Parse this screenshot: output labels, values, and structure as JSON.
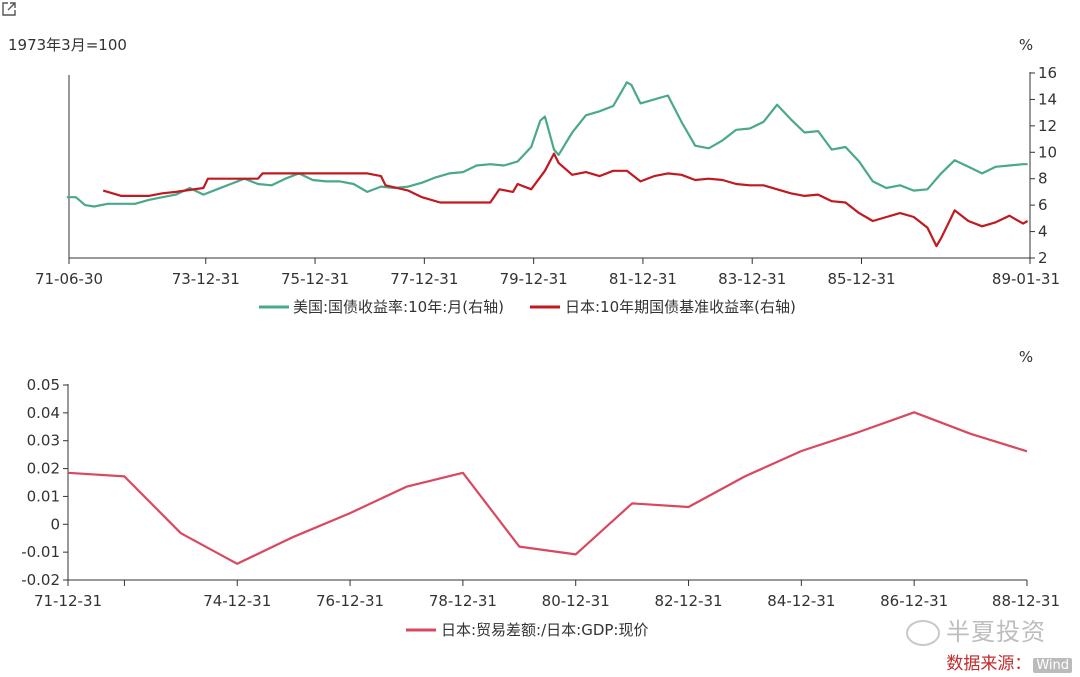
{
  "chart_data": [
    {
      "type": "line",
      "note_left": "1973年3月=100",
      "unit_right": "%",
      "x_tick_labels": [
        "71-06-30",
        "73-12-31",
        "75-12-31",
        "77-12-31",
        "79-12-31",
        "81-12-31",
        "83-12-31",
        "85-12-31",
        "89-01-31"
      ],
      "x_tick_dates": [
        "1971-06-30",
        "1973-12-31",
        "1975-12-31",
        "1977-12-31",
        "1979-12-31",
        "1981-12-31",
        "1983-12-31",
        "1985-12-31",
        "1989-01-31"
      ],
      "x_range": [
        "1971-06-30",
        "1989-01-31"
      ],
      "y_right_ticks": [
        2,
        4,
        6,
        8,
        10,
        12,
        14,
        16
      ],
      "y_right_range": [
        2,
        16
      ],
      "series": [
        {
          "name": "美国:国债收益率:10年:月(右轴)",
          "color": "#4aa88b",
          "points": [
            [
              "1971-06",
              6.6
            ],
            [
              "1971-08",
              6.6
            ],
            [
              "1971-10",
              6.0
            ],
            [
              "1971-12",
              5.9
            ],
            [
              "1972-03",
              6.1
            ],
            [
              "1972-06",
              6.1
            ],
            [
              "1972-09",
              6.1
            ],
            [
              "1972-12",
              6.4
            ],
            [
              "1973-03",
              6.6
            ],
            [
              "1973-06",
              6.8
            ],
            [
              "1973-09",
              7.3
            ],
            [
              "1973-12",
              6.8
            ],
            [
              "1974-03",
              7.2
            ],
            [
              "1974-06",
              7.6
            ],
            [
              "1974-09",
              8.0
            ],
            [
              "1974-12",
              7.6
            ],
            [
              "1975-03",
              7.5
            ],
            [
              "1975-06",
              8.0
            ],
            [
              "1975-09",
              8.4
            ],
            [
              "1975-12",
              7.9
            ],
            [
              "1976-03",
              7.8
            ],
            [
              "1976-06",
              7.8
            ],
            [
              "1976-09",
              7.6
            ],
            [
              "1976-12",
              7.0
            ],
            [
              "1977-03",
              7.4
            ],
            [
              "1977-06",
              7.3
            ],
            [
              "1977-09",
              7.4
            ],
            [
              "1977-12",
              7.7
            ],
            [
              "1978-03",
              8.1
            ],
            [
              "1978-06",
              8.4
            ],
            [
              "1978-09",
              8.5
            ],
            [
              "1978-12",
              9.0
            ],
            [
              "1979-03",
              9.1
            ],
            [
              "1979-06",
              9.0
            ],
            [
              "1979-09",
              9.3
            ],
            [
              "1979-12",
              10.4
            ],
            [
              "1980-02",
              12.4
            ],
            [
              "1980-03",
              12.7
            ],
            [
              "1980-05",
              10.2
            ],
            [
              "1980-06",
              9.8
            ],
            [
              "1980-09",
              11.5
            ],
            [
              "1980-12",
              12.8
            ],
            [
              "1981-03",
              13.1
            ],
            [
              "1981-06",
              13.5
            ],
            [
              "1981-09",
              15.3
            ],
            [
              "1981-10",
              15.1
            ],
            [
              "1981-12",
              13.7
            ],
            [
              "1982-03",
              14.0
            ],
            [
              "1982-06",
              14.3
            ],
            [
              "1982-09",
              12.3
            ],
            [
              "1982-12",
              10.5
            ],
            [
              "1983-03",
              10.3
            ],
            [
              "1983-06",
              10.9
            ],
            [
              "1983-09",
              11.7
            ],
            [
              "1983-12",
              11.8
            ],
            [
              "1984-03",
              12.3
            ],
            [
              "1984-06",
              13.6
            ],
            [
              "1984-09",
              12.5
            ],
            [
              "1984-12",
              11.5
            ],
            [
              "1985-03",
              11.6
            ],
            [
              "1985-06",
              10.2
            ],
            [
              "1985-09",
              10.4
            ],
            [
              "1985-12",
              9.3
            ],
            [
              "1986-03",
              7.8
            ],
            [
              "1986-06",
              7.3
            ],
            [
              "1986-09",
              7.5
            ],
            [
              "1986-12",
              7.1
            ],
            [
              "1987-03",
              7.2
            ],
            [
              "1987-06",
              8.4
            ],
            [
              "1987-09",
              9.4
            ],
            [
              "1987-12",
              8.9
            ],
            [
              "1988-03",
              8.4
            ],
            [
              "1988-06",
              8.9
            ],
            [
              "1988-09",
              9.0
            ],
            [
              "1988-12",
              9.1
            ],
            [
              "1989-01",
              9.1
            ]
          ]
        },
        {
          "name": "日本:10年期国债基准收益率(右轴)",
          "color": "#c0191f",
          "points": [
            [
              "1972-02",
              7.1
            ],
            [
              "1972-06",
              6.7
            ],
            [
              "1972-12",
              6.7
            ],
            [
              "1973-03",
              6.9
            ],
            [
              "1973-06",
              7.0
            ],
            [
              "1973-12",
              7.3
            ],
            [
              "1974-01",
              8.0
            ],
            [
              "1974-12",
              8.0
            ],
            [
              "1975-01",
              8.4
            ],
            [
              "1976-12",
              8.4
            ],
            [
              "1977-03",
              8.2
            ],
            [
              "1977-04",
              7.5
            ],
            [
              "1977-09",
              7.1
            ],
            [
              "1977-12",
              6.6
            ],
            [
              "1978-04",
              6.2
            ],
            [
              "1979-03",
              6.2
            ],
            [
              "1979-05",
              7.2
            ],
            [
              "1979-08",
              7.0
            ],
            [
              "1979-09",
              7.6
            ],
            [
              "1979-12",
              7.2
            ],
            [
              "1980-03",
              8.6
            ],
            [
              "1980-05",
              9.9
            ],
            [
              "1980-06",
              9.2
            ],
            [
              "1980-09",
              8.3
            ],
            [
              "1980-12",
              8.5
            ],
            [
              "1981-03",
              8.2
            ],
            [
              "1981-06",
              8.6
            ],
            [
              "1981-09",
              8.6
            ],
            [
              "1981-12",
              7.8
            ],
            [
              "1982-03",
              8.2
            ],
            [
              "1982-06",
              8.4
            ],
            [
              "1982-09",
              8.3
            ],
            [
              "1982-12",
              7.9
            ],
            [
              "1983-03",
              8.0
            ],
            [
              "1983-06",
              7.9
            ],
            [
              "1983-09",
              7.6
            ],
            [
              "1983-12",
              7.5
            ],
            [
              "1984-03",
              7.5
            ],
            [
              "1984-06",
              7.2
            ],
            [
              "1984-09",
              6.9
            ],
            [
              "1984-12",
              6.7
            ],
            [
              "1985-03",
              6.8
            ],
            [
              "1985-06",
              6.3
            ],
            [
              "1985-09",
              6.2
            ],
            [
              "1985-12",
              5.4
            ],
            [
              "1986-03",
              4.8
            ],
            [
              "1986-06",
              5.1
            ],
            [
              "1986-09",
              5.4
            ],
            [
              "1986-12",
              5.1
            ],
            [
              "1987-03",
              4.3
            ],
            [
              "1987-05",
              2.9
            ],
            [
              "1987-06",
              3.5
            ],
            [
              "1987-09",
              5.6
            ],
            [
              "1987-12",
              4.8
            ],
            [
              "1988-03",
              4.4
            ],
            [
              "1988-06",
              4.7
            ],
            [
              "1988-09",
              5.2
            ],
            [
              "1988-12",
              4.6
            ],
            [
              "1989-01",
              4.8
            ]
          ]
        }
      ],
      "legend_placement": "bottom"
    },
    {
      "type": "line",
      "unit_right": "%",
      "x_tick_labels": [
        "71-12-31",
        "74-12-31",
        "76-12-31",
        "78-12-31",
        "80-12-31",
        "82-12-31",
        "84-12-31",
        "86-12-31",
        "88-12-31"
      ],
      "x_tick_dates": [
        "1971-12-31",
        "1974-12-31",
        "1976-12-31",
        "1978-12-31",
        "1980-12-31",
        "1982-12-31",
        "1984-12-31",
        "1986-12-31",
        "1988-12-31"
      ],
      "x_range": [
        "1971-12-31",
        "1988-12-31"
      ],
      "y_ticks": [
        -0.02,
        -0.01,
        0,
        0.01,
        0.02,
        0.03,
        0.04,
        0.05
      ],
      "y_tick_labels": [
        "-0.02",
        "-0.01",
        "0",
        "0.01",
        "0.02",
        "0.03",
        "0.04",
        "0.05"
      ],
      "y_range": [
        -0.02,
        0.05
      ],
      "series": [
        {
          "name": "日本:贸易差额:/日本:GDP:现价",
          "color": "#d94860",
          "points": [
            [
              "1971-12-31",
              0.0185
            ],
            [
              "1972-12-31",
              0.0172
            ],
            [
              "1973-12-31",
              -0.0032
            ],
            [
              "1974-12-31",
              -0.0142
            ],
            [
              "1975-12-31",
              -0.0045
            ],
            [
              "1976-12-31",
              0.004
            ],
            [
              "1977-12-31",
              0.0135
            ],
            [
              "1978-12-31",
              0.0185
            ],
            [
              "1979-12-31",
              -0.008
            ],
            [
              "1980-12-31",
              -0.0108
            ],
            [
              "1981-12-31",
              0.0075
            ],
            [
              "1982-12-31",
              0.0062
            ],
            [
              "1983-12-31",
              0.0172
            ],
            [
              "1984-12-31",
              0.0263
            ],
            [
              "1985-12-31",
              0.033
            ],
            [
              "1986-12-31",
              0.0402
            ],
            [
              "1987-12-31",
              0.0325
            ],
            [
              "1988-12-31",
              0.0262
            ]
          ]
        }
      ],
      "legend_placement": "bottom"
    }
  ],
  "watermark": "半夏投资",
  "source": {
    "label": "数据来源：",
    "badge": "Wind"
  },
  "icons": {
    "export": "export-icon",
    "watermark": "wechat-icon"
  }
}
